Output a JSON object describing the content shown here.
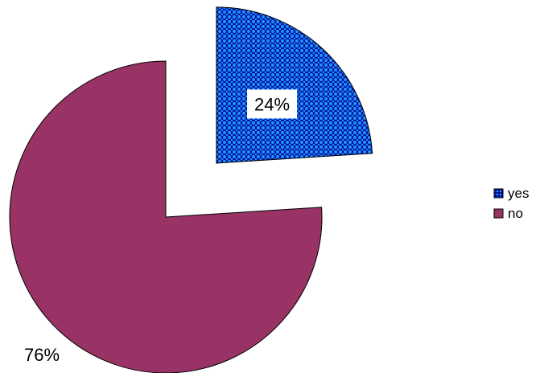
{
  "chart_data": {
    "type": "pie",
    "title": "",
    "legend_position": "right",
    "slices": [
      {
        "label": "yes",
        "value": 24,
        "display": "24%",
        "color": "#1E90FF",
        "pattern": "dotted-checker",
        "exploded": true
      },
      {
        "label": "no",
        "value": 76,
        "display": "76%",
        "color": "#993366",
        "pattern": "solid",
        "exploded": false
      }
    ]
  }
}
